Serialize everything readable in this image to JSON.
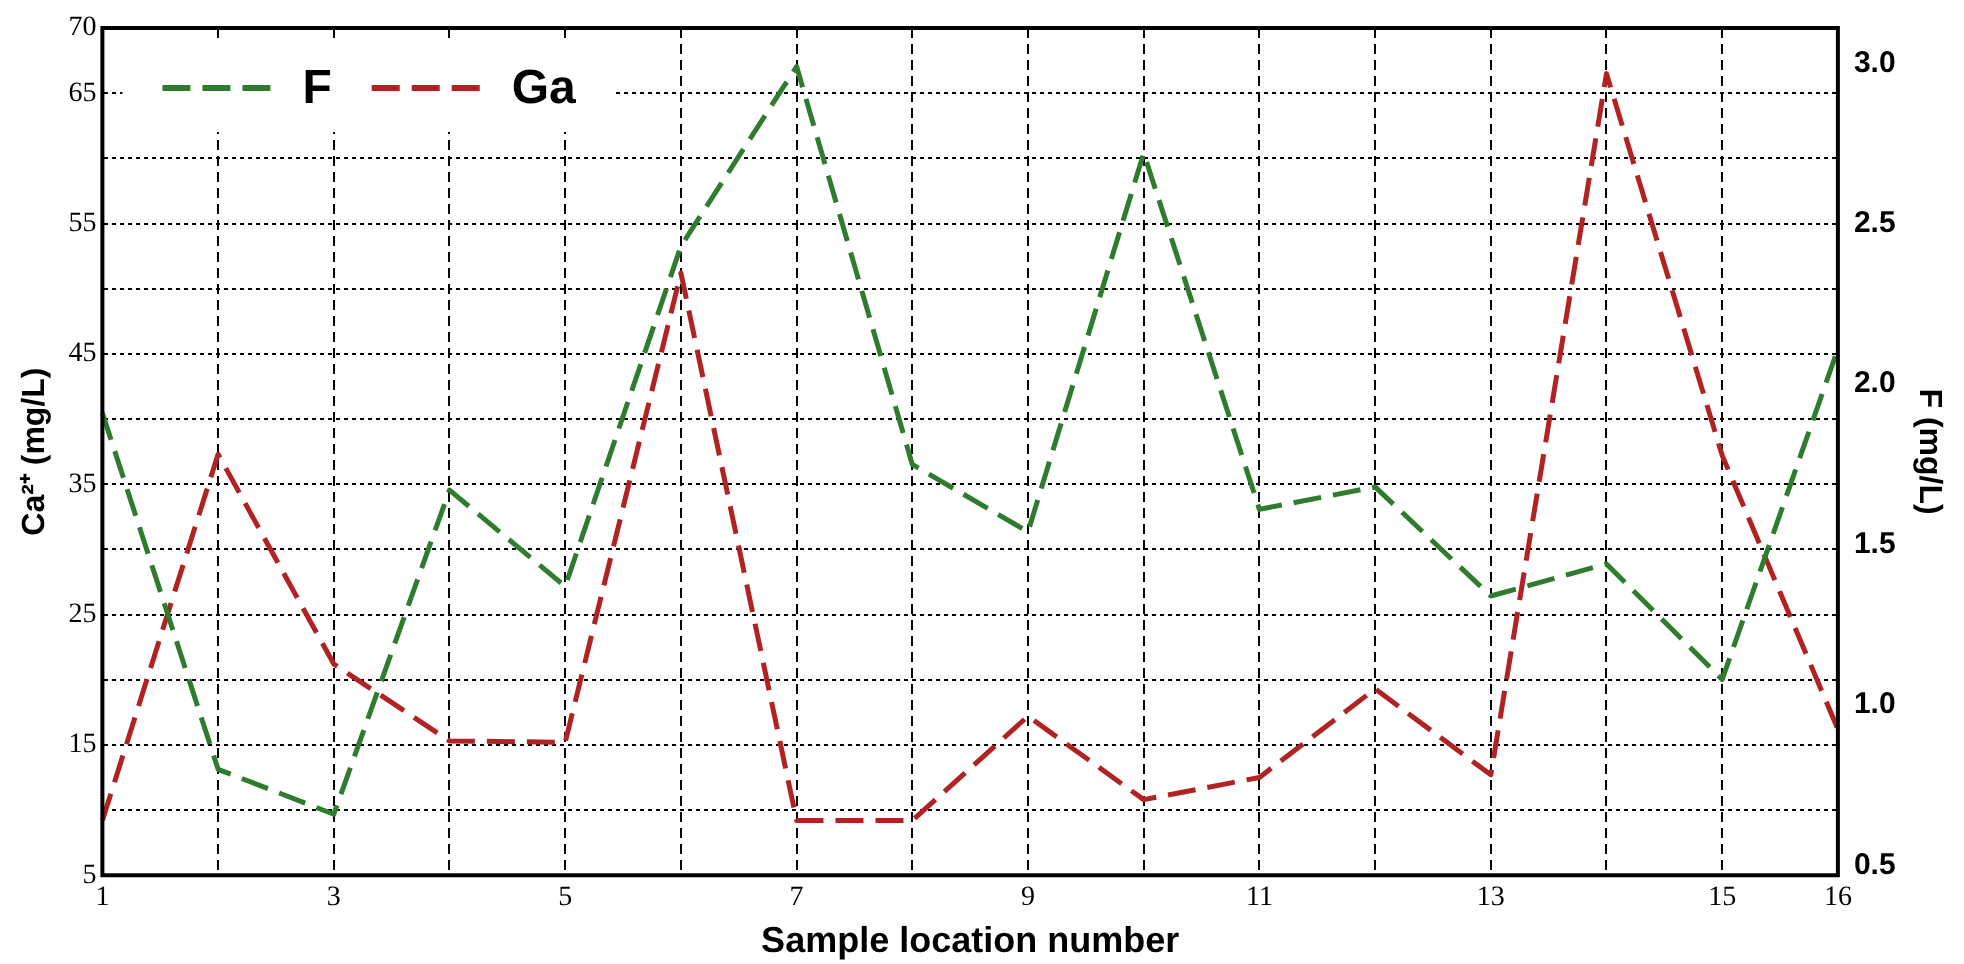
{
  "chart_data": {
    "type": "line",
    "xlabel": "Sample location number",
    "ylabel": "Ca²⁺ (mg/L)",
    "y2label": "F (mg/L)",
    "categories": [
      "1",
      null,
      "3",
      null,
      "5",
      null,
      "7",
      null,
      "9",
      null,
      "11",
      null,
      "13",
      null,
      "15",
      "16"
    ],
    "series": [
      {
        "name": "F",
        "color": "#2e7d2e",
        "axis": "y2",
        "values": [
          1.91,
          0.8,
          0.66,
          1.67,
          1.37,
          2.43,
          2.99,
          1.75,
          1.54,
          2.72,
          1.61,
          1.68,
          1.34,
          1.44,
          1.08,
          2.11
        ]
      },
      {
        "name": "Ga",
        "color": "#b22222",
        "axis": "y",
        "values": [
          9.2,
          37.3,
          21.2,
          15.3,
          15.2,
          51.2,
          9.2,
          9.2,
          17.2,
          10.8,
          12.5,
          19.3,
          12.7,
          66.5,
          37.2,
          16.2
        ]
      }
    ],
    "ylim": [
      5,
      70
    ],
    "yticks": [
      5,
      {
        "value": 10,
        "label": null
      },
      15,
      {
        "value": 20,
        "label": null
      },
      25,
      {
        "value": 30,
        "label": null
      },
      35,
      {
        "value": 40,
        "label": null
      },
      45,
      {
        "value": 50,
        "label": null
      },
      55,
      {
        "value": 60,
        "label": null
      },
      65,
      70
    ],
    "y2lim": [
      0.47,
      3.11
    ],
    "y2ticks": [
      {
        "value": 0.5,
        "label": "0.5"
      },
      {
        "value": 1,
        "label": "1.0"
      },
      {
        "value": 1.5,
        "label": "1.5"
      },
      {
        "value": 2,
        "label": "2.0"
      },
      {
        "value": 2.5,
        "label": "2.5"
      },
      {
        "value": 3,
        "label": "3.0"
      }
    ],
    "grid": true,
    "legend": "top left",
    "marker": "none",
    "line_style": "dashed"
  }
}
